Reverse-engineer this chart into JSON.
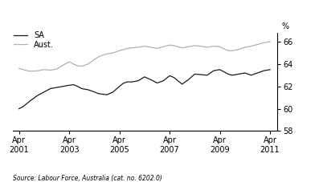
{
  "title": "",
  "pct_label": "%",
  "source_text": "Source: Labour Force, Australia (cat. no. 6202.0)",
  "ylim": [
    58,
    66.8
  ],
  "yticks": [
    58,
    60,
    62,
    64,
    66
  ],
  "xtick_labels": [
    "Apr\n2001",
    "Apr\n2003",
    "Apr\n2005",
    "Apr\n2007",
    "Apr\n2009",
    "Apr\n2011"
  ],
  "legend_sa": "SA",
  "legend_aust": "Aust.",
  "color_sa": "#1a1a1a",
  "color_aust": "#b0b0b0",
  "sa_x": [
    2001.25,
    2001.42,
    2001.58,
    2001.75,
    2002.0,
    2002.25,
    2002.5,
    2002.75,
    2003.0,
    2003.25,
    2003.42,
    2003.58,
    2003.75,
    2004.0,
    2004.25,
    2004.42,
    2004.58,
    2004.75,
    2005.0,
    2005.25,
    2005.42,
    2005.58,
    2005.75,
    2006.0,
    2006.25,
    2006.5,
    2006.75,
    2007.0,
    2007.25,
    2007.42,
    2007.58,
    2007.75,
    2008.0,
    2008.25,
    2008.5,
    2008.75,
    2009.0,
    2009.25,
    2009.42,
    2009.58,
    2009.75,
    2010.0,
    2010.25,
    2010.5,
    2010.75,
    2011.0,
    2011.25
  ],
  "sa_y": [
    60.0,
    60.2,
    60.5,
    60.8,
    61.2,
    61.5,
    61.8,
    61.9,
    62.0,
    62.1,
    62.15,
    62.0,
    61.8,
    61.7,
    61.5,
    61.35,
    61.3,
    61.25,
    61.5,
    62.0,
    62.3,
    62.4,
    62.4,
    62.5,
    62.85,
    62.6,
    62.3,
    62.5,
    62.95,
    62.8,
    62.5,
    62.2,
    62.6,
    63.1,
    63.05,
    63.0,
    63.4,
    63.5,
    63.3,
    63.1,
    63.0,
    63.1,
    63.2,
    63.0,
    63.2,
    63.4,
    63.5
  ],
  "aust_x": [
    2001.25,
    2001.42,
    2001.58,
    2001.75,
    2002.0,
    2002.25,
    2002.5,
    2002.75,
    2003.0,
    2003.25,
    2003.42,
    2003.58,
    2003.75,
    2004.0,
    2004.25,
    2004.42,
    2004.58,
    2004.75,
    2005.0,
    2005.25,
    2005.42,
    2005.58,
    2005.75,
    2006.0,
    2006.25,
    2006.5,
    2006.75,
    2007.0,
    2007.25,
    2007.42,
    2007.58,
    2007.75,
    2008.0,
    2008.25,
    2008.5,
    2008.75,
    2009.0,
    2009.25,
    2009.42,
    2009.58,
    2009.75,
    2010.0,
    2010.25,
    2010.5,
    2010.75,
    2011.0,
    2011.25
  ],
  "aust_y": [
    63.6,
    63.5,
    63.4,
    63.35,
    63.4,
    63.5,
    63.45,
    63.55,
    63.9,
    64.2,
    64.0,
    63.85,
    63.8,
    64.0,
    64.4,
    64.65,
    64.8,
    64.9,
    65.0,
    65.2,
    65.3,
    65.4,
    65.45,
    65.5,
    65.6,
    65.5,
    65.4,
    65.55,
    65.7,
    65.65,
    65.55,
    65.45,
    65.55,
    65.65,
    65.6,
    65.5,
    65.6,
    65.55,
    65.35,
    65.2,
    65.2,
    65.3,
    65.5,
    65.6,
    65.75,
    65.9,
    66.0
  ]
}
